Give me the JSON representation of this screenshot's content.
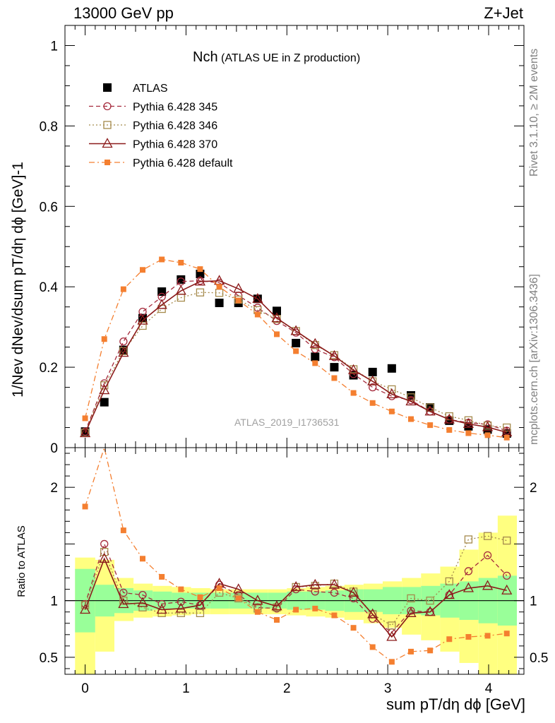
{
  "header": {
    "left": "13000 GeV pp",
    "right": "Z+Jet"
  },
  "side_labels": {
    "rivet": "Rivet 3.1.10, ≥ 2M events",
    "mcplots": "mcplots.cern.ch [arXiv:1306.3436]"
  },
  "watermark": "ATLAS_2019_I1736531",
  "chart_data": [
    {
      "type": "scatter",
      "panel": "main",
      "title": "Nch",
      "subtitle": "(ATLAS UE in Z production)",
      "xlabel": "sum pT/dη dϕ [GeV]",
      "ylabel": "1/Nev dNev/dsum pT/dη dϕ [GeV]-1",
      "xlim": [
        -0.2,
        4.35
      ],
      "ylim": [
        0,
        1.05
      ],
      "xticks": [
        "0",
        "1",
        "2",
        "3",
        "4"
      ],
      "yticks": [
        "0",
        "0.2",
        "0.4",
        "0.6",
        "0.8",
        "1"
      ],
      "legend_position": "top-left",
      "x": [
        0.0,
        0.19,
        0.38,
        0.57,
        0.76,
        0.95,
        1.14,
        1.33,
        1.52,
        1.71,
        1.9,
        2.09,
        2.28,
        2.47,
        2.66,
        2.85,
        3.04,
        3.23,
        3.42,
        3.61,
        3.8,
        3.99,
        4.18
      ],
      "series": [
        {
          "name": "ATLAS",
          "color": "#000000",
          "style": "data",
          "values": [
            0.04,
            0.113,
            0.243,
            0.322,
            0.388,
            0.418,
            0.432,
            0.36,
            0.36,
            0.37,
            0.34,
            0.26,
            0.226,
            0.2,
            0.18,
            0.188,
            0.197,
            0.13,
            0.1,
            0.067,
            0.053,
            0.045,
            0.035
          ]
        },
        {
          "name": "Pythia 6.428 345",
          "color": "#a52a3c",
          "style": "dashed-circle",
          "values": [
            0.04,
            0.16,
            0.264,
            0.338,
            0.375,
            0.413,
            0.415,
            0.41,
            0.378,
            0.348,
            0.315,
            0.286,
            0.245,
            0.225,
            0.183,
            0.15,
            0.128,
            0.118,
            0.09,
            0.07,
            0.062,
            0.058,
            0.042
          ]
        },
        {
          "name": "Pythia 6.428 346",
          "color": "#a58a4c",
          "style": "dotted-square",
          "values": [
            0.037,
            0.155,
            0.24,
            0.303,
            0.345,
            0.373,
            0.386,
            0.385,
            0.368,
            0.342,
            0.32,
            0.29,
            0.255,
            0.23,
            0.195,
            0.165,
            0.145,
            0.125,
            0.1,
            0.078,
            0.068,
            0.055,
            0.05
          ]
        },
        {
          "name": "Pythia 6.428 370",
          "color": "#8b1a1a",
          "style": "solid-triangle",
          "values": [
            0.036,
            0.143,
            0.236,
            0.316,
            0.355,
            0.39,
            0.413,
            0.415,
            0.395,
            0.37,
            0.322,
            0.29,
            0.258,
            0.228,
            0.193,
            0.165,
            0.133,
            0.115,
            0.09,
            0.07,
            0.059,
            0.051,
            0.038
          ]
        },
        {
          "name": "Pythia 6.428 default",
          "color": "#f47f30",
          "style": "dashdot-filledsquare",
          "values": [
            0.073,
            0.27,
            0.394,
            0.442,
            0.468,
            0.46,
            0.444,
            0.4,
            0.366,
            0.331,
            0.282,
            0.24,
            0.21,
            0.173,
            0.136,
            0.111,
            0.09,
            0.071,
            0.056,
            0.044,
            0.036,
            0.031,
            0.025
          ]
        }
      ]
    },
    {
      "type": "line",
      "panel": "ratio",
      "ylabel": "Ratio to ATLAS",
      "xlim": [
        -0.2,
        4.35
      ],
      "ylim": [
        0.35,
        2.35
      ],
      "yticks": [
        "0.5",
        "1",
        "2"
      ],
      "reference_line": 1,
      "x": [
        0.0,
        0.19,
        0.38,
        0.57,
        0.76,
        0.95,
        1.14,
        1.33,
        1.52,
        1.71,
        1.9,
        2.09,
        2.28,
        2.47,
        2.66,
        2.85,
        3.04,
        3.23,
        3.42,
        3.61,
        3.8,
        3.99,
        4.18
      ],
      "bands": {
        "edges": [
          -0.1,
          0.1,
          0.29,
          0.48,
          0.67,
          0.86,
          1.05,
          1.24,
          1.43,
          1.62,
          1.81,
          2.0,
          2.19,
          2.38,
          2.57,
          2.76,
          2.95,
          3.14,
          3.33,
          3.52,
          3.71,
          3.9,
          4.09,
          4.28
        ],
        "green": [
          0.28,
          0.14,
          0.11,
          0.09,
          0.08,
          0.07,
          0.07,
          0.07,
          0.07,
          0.07,
          0.07,
          0.08,
          0.08,
          0.09,
          0.1,
          0.1,
          0.12,
          0.12,
          0.13,
          0.15,
          0.17,
          0.2,
          0.22
        ],
        "yellow_up": [
          0.38,
          0.36,
          0.2,
          0.15,
          0.13,
          0.12,
          0.11,
          0.1,
          0.1,
          0.1,
          0.1,
          0.11,
          0.12,
          0.13,
          0.14,
          0.15,
          0.17,
          0.2,
          0.24,
          0.3,
          0.45,
          0.6,
          0.75
        ],
        "yellow_down": [
          0.65,
          0.45,
          0.18,
          0.15,
          0.14,
          0.13,
          0.12,
          0.12,
          0.12,
          0.12,
          0.12,
          0.13,
          0.14,
          0.15,
          0.17,
          0.2,
          0.24,
          0.3,
          0.35,
          0.45,
          0.55,
          0.65,
          0.65
        ]
      },
      "series": [
        {
          "name": "Pythia 6.428 345",
          "color": "#a52a3c",
          "style": "dashed-circle",
          "values": [
            0.97,
            1.5,
            1.07,
            1.05,
            0.97,
            0.99,
            0.96,
            1.14,
            1.05,
            0.94,
            0.93,
            1.1,
            1.08,
            1.07,
            1.02,
            0.84,
            0.72,
            0.91,
            0.9,
            1.05,
            1.26,
            1.4,
            1.22
          ]
        },
        {
          "name": "Pythia 6.428 346",
          "color": "#a58a4c",
          "style": "dotted-square",
          "values": [
            0.96,
            1.43,
            1.0,
            0.94,
            0.89,
            0.89,
            0.89,
            1.07,
            1.02,
            0.93,
            0.94,
            1.12,
            1.13,
            1.15,
            1.08,
            0.88,
            0.78,
            1.02,
            1.0,
            1.17,
            1.54,
            1.57,
            1.53
          ]
        },
        {
          "name": "Pythia 6.428 370",
          "color": "#8b1a1a",
          "style": "solid-triangle",
          "values": [
            0.92,
            1.37,
            0.97,
            0.98,
            0.92,
            0.93,
            0.96,
            1.15,
            1.1,
            1.0,
            0.95,
            1.12,
            1.14,
            1.14,
            1.07,
            0.88,
            0.68,
            0.89,
            0.9,
            1.05,
            1.11,
            1.13,
            1.09
          ]
        },
        {
          "name": "Pythia 6.428 default",
          "color": "#f47f30",
          "style": "dashdot-filledsquare",
          "values": [
            1.83,
            2.38,
            1.62,
            1.37,
            1.21,
            1.1,
            1.03,
            1.11,
            1.02,
            0.9,
            0.83,
            0.92,
            0.93,
            0.87,
            0.76,
            0.59,
            0.46,
            0.55,
            0.56,
            0.66,
            0.68,
            0.69,
            0.71
          ]
        }
      ]
    }
  ]
}
